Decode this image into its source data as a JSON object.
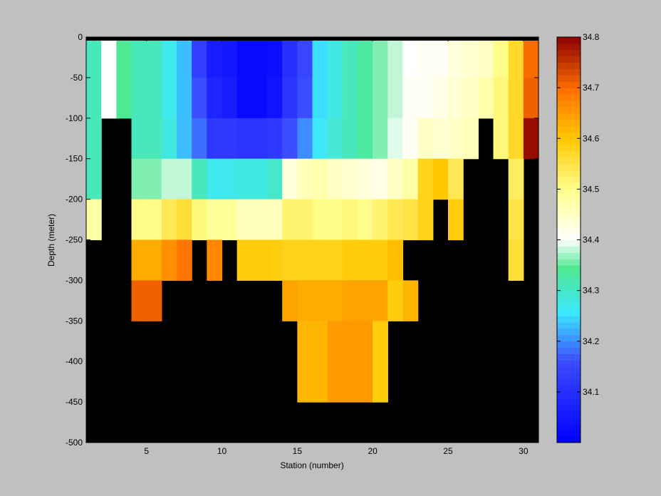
{
  "chart_data": [
    {
      "type": "heatmap",
      "title": "",
      "xlabel": "Station (number)",
      "ylabel": "Depth (meter)",
      "xlim": [
        1,
        31
      ],
      "ylim": [
        -500,
        0
      ],
      "x_ticks": [
        5,
        10,
        15,
        20,
        25,
        30
      ],
      "y_ticks": [
        0,
        -50,
        -100,
        -150,
        -200,
        -250,
        -300,
        -350,
        -400,
        -450,
        -500
      ],
      "stations": [
        1,
        2,
        3,
        4,
        5,
        6,
        7,
        8,
        9,
        10,
        11,
        12,
        13,
        14,
        15,
        16,
        17,
        18,
        19,
        20,
        21,
        22,
        23,
        24,
        25,
        26,
        27,
        28,
        29,
        30
      ],
      "depth_bin_tops": [
        0,
        -50,
        -100,
        -150,
        -200,
        -250,
        -300,
        -350,
        -400
      ],
      "depth_bin_size": 50,
      "no_data_color": "#000000",
      "salinity_rows": [
        [
          34.31,
          34.4,
          34.34,
          34.31,
          34.31,
          34.27,
          34.23,
          34.13,
          34.06,
          34.05,
          34.02,
          34.02,
          34.03,
          34.1,
          34.15,
          34.25,
          34.28,
          34.31,
          34.33,
          34.36,
          34.38,
          34.4,
          34.41,
          34.41,
          34.43,
          34.44,
          34.45,
          34.5,
          34.57,
          34.7
        ],
        [
          34.31,
          34.4,
          34.34,
          34.31,
          34.31,
          34.27,
          34.23,
          34.16,
          34.08,
          34.06,
          34.02,
          34.02,
          34.04,
          34.11,
          34.16,
          34.25,
          34.28,
          34.31,
          34.33,
          34.36,
          34.38,
          34.41,
          34.41,
          34.42,
          34.44,
          34.45,
          34.47,
          34.51,
          34.57,
          34.71
        ],
        [
          34.31,
          null,
          null,
          34.31,
          34.31,
          34.28,
          34.23,
          34.18,
          34.12,
          34.12,
          34.11,
          34.11,
          34.12,
          34.16,
          34.2,
          34.26,
          34.29,
          34.31,
          34.33,
          34.36,
          34.39,
          34.41,
          34.45,
          34.44,
          34.45,
          34.46,
          null,
          34.51,
          34.57,
          34.79
        ],
        [
          34.31,
          null,
          null,
          34.36,
          34.36,
          34.38,
          34.38,
          34.31,
          34.27,
          34.27,
          34.28,
          34.28,
          34.3,
          34.43,
          34.46,
          34.47,
          34.45,
          34.44,
          34.43,
          34.42,
          34.45,
          34.48,
          34.58,
          34.6,
          34.54,
          null,
          null,
          null,
          34.53,
          null
        ],
        [
          34.48,
          null,
          null,
          34.5,
          34.5,
          34.54,
          34.56,
          34.51,
          34.49,
          34.49,
          34.46,
          34.46,
          34.46,
          34.52,
          34.52,
          34.5,
          34.5,
          34.51,
          34.5,
          34.52,
          34.54,
          34.55,
          34.58,
          null,
          34.59,
          null,
          null,
          null,
          34.55,
          null
        ],
        [
          null,
          null,
          null,
          34.63,
          34.63,
          34.66,
          34.69,
          null,
          34.67,
          null,
          34.59,
          34.59,
          34.59,
          34.58,
          34.58,
          34.58,
          34.58,
          34.59,
          34.59,
          34.59,
          34.61,
          null,
          null,
          null,
          null,
          null,
          null,
          null,
          34.56,
          null
        ],
        [
          null,
          null,
          null,
          34.71,
          34.71,
          null,
          null,
          null,
          null,
          null,
          null,
          null,
          null,
          34.64,
          34.63,
          34.63,
          34.63,
          34.64,
          34.64,
          34.64,
          34.59,
          34.62,
          null,
          null,
          null,
          null,
          null,
          null,
          null,
          null
        ],
        [
          null,
          null,
          null,
          null,
          null,
          null,
          null,
          null,
          null,
          null,
          null,
          null,
          null,
          null,
          34.62,
          34.62,
          34.65,
          34.65,
          34.65,
          34.59,
          null,
          null,
          null,
          null,
          null,
          null,
          null,
          null,
          null,
          null
        ],
        [
          null,
          null,
          null,
          null,
          null,
          null,
          null,
          null,
          null,
          null,
          null,
          null,
          null,
          null,
          34.62,
          34.62,
          34.65,
          34.65,
          34.65,
          34.59,
          null,
          null,
          null,
          null,
          null,
          null,
          null,
          null,
          null,
          null
        ]
      ]
    },
    {
      "type": "colorbar",
      "ticks": [
        34.1,
        34.2,
        34.3,
        34.4,
        34.5,
        34.6,
        34.7,
        34.8
      ],
      "tick_labels": [
        "34.1",
        "34.2",
        "34.3",
        "34.4",
        "34.5",
        "34.6",
        "34.7",
        "34.8"
      ],
      "range": [
        34.0,
        34.8
      ],
      "colormap_stops": [
        {
          "v": 0.0,
          "c": "#0000ff"
        },
        {
          "v": 0.2,
          "c": "#3c4cff"
        },
        {
          "v": 0.32,
          "c": "#3ce8ff"
        },
        {
          "v": 0.43,
          "c": "#50e890"
        },
        {
          "v": 0.5,
          "c": "#ffffff"
        },
        {
          "v": 0.62,
          "c": "#ffff90"
        },
        {
          "v": 0.75,
          "c": "#ffc800"
        },
        {
          "v": 0.87,
          "c": "#ff7000"
        },
        {
          "v": 1.0,
          "c": "#8c0000"
        }
      ]
    }
  ]
}
